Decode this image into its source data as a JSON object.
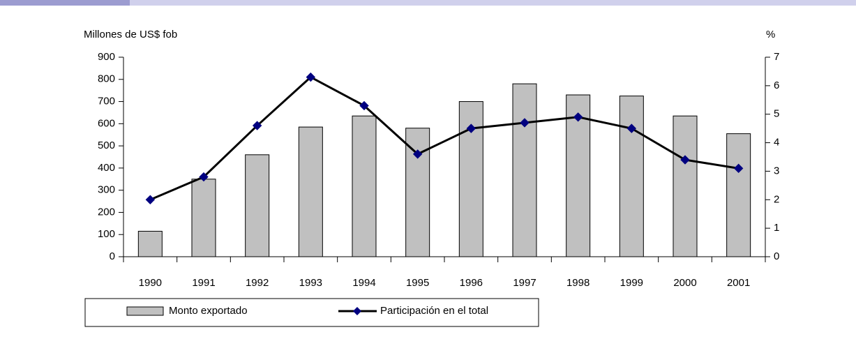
{
  "chart_data": {
    "type": "bar",
    "y_label": "Millones de US$ fob",
    "y2_label": "%",
    "categories": [
      "1990",
      "1991",
      "1992",
      "1993",
      "1994",
      "1995",
      "1996",
      "1997",
      "1998",
      "1999",
      "2000",
      "2001"
    ],
    "series": [
      {
        "name": "Monto exportado",
        "type": "bar",
        "color": "#c0c0c0",
        "values": [
          115,
          350,
          460,
          585,
          635,
          580,
          700,
          780,
          730,
          725,
          635,
          555
        ]
      },
      {
        "name": "Participación en el total",
        "type": "line",
        "axis": "y2",
        "color": "#000000",
        "marker_color": "#000080",
        "values": [
          2.0,
          2.8,
          4.6,
          6.3,
          5.3,
          3.6,
          4.5,
          4.7,
          4.9,
          4.5,
          3.4,
          3.1
        ]
      }
    ],
    "ylim": [
      0,
      900
    ],
    "yticks": [
      0,
      100,
      200,
      300,
      400,
      500,
      600,
      700,
      800,
      900
    ],
    "y2lim": [
      0,
      7
    ],
    "y2ticks": [
      0,
      1,
      2,
      3,
      4,
      5,
      6,
      7
    ]
  }
}
